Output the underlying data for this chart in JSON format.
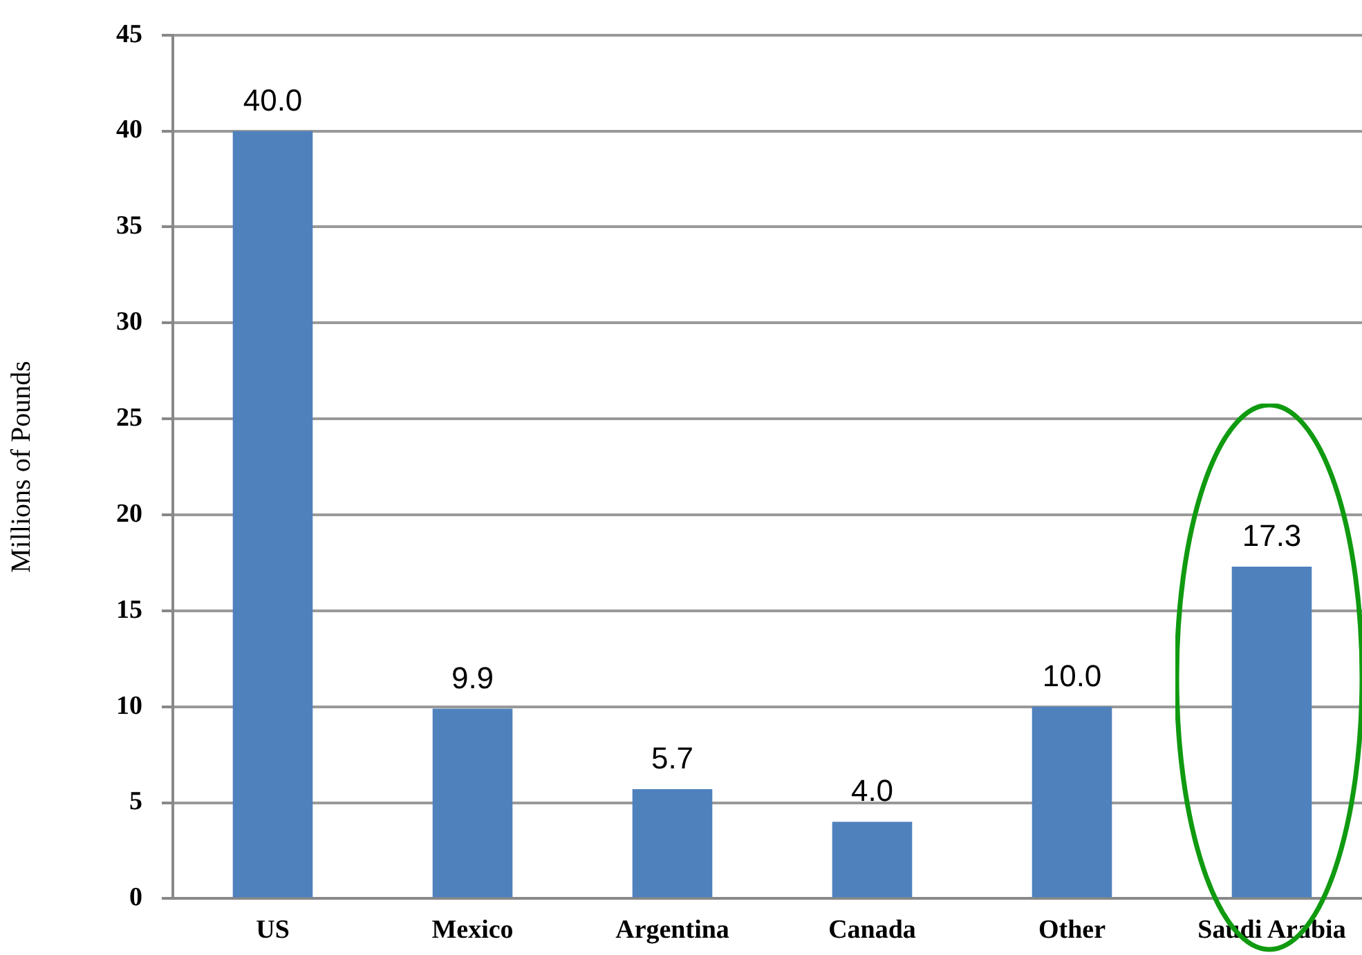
{
  "chart_data": {
    "type": "bar",
    "ylabel": "Millions of Pounds",
    "categories": [
      "US",
      "Mexico",
      "Argentina",
      "Canada",
      "Other",
      "Saudi Arabia"
    ],
    "values": [
      40.0,
      9.9,
      5.7,
      4.0,
      10.0,
      17.3
    ],
    "value_labels": [
      "40.0",
      "9.9",
      "5.7",
      "4.0",
      "10.0",
      "17.3"
    ],
    "color": "#4f81bd",
    "ylim": [
      0,
      45
    ],
    "yticks": [
      0,
      5,
      10,
      15,
      20,
      25,
      30,
      35,
      40,
      45
    ],
    "grid": "y",
    "legend": false
  }
}
